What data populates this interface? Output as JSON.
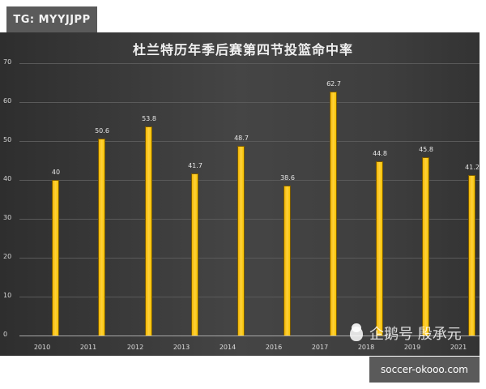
{
  "badges": {
    "tg": "TG: MYYJJPP",
    "site": "soccer-okooo.com"
  },
  "watermark": {
    "icon": "penguin-icon",
    "text": "企鹅号 殷承元"
  },
  "colors": {
    "bar": "#f5c000",
    "background": "#3c3c3c",
    "text": "#e6e6e6"
  },
  "chart_data": {
    "type": "bar",
    "title": "杜兰特历年季后赛第四节投篮命中率",
    "xlabel": "",
    "ylabel": "",
    "categories": [
      "2010",
      "2011",
      "2012",
      "2013",
      "2014",
      "2016",
      "2017",
      "2018",
      "2019",
      "2021"
    ],
    "values": [
      40,
      50.6,
      53.8,
      41.7,
      48.7,
      38.6,
      62.7,
      44.8,
      45.8,
      41.2
    ],
    "labels": [
      "40",
      "50.6",
      "53.8",
      "41.7",
      "48.7",
      "38.6",
      "62.7",
      "44.8",
      "45.8",
      "41.2"
    ],
    "ylim": [
      0,
      70
    ],
    "yticks": [
      "0",
      "10",
      "20",
      "30",
      "40",
      "50",
      "60",
      "70"
    ],
    "grid": true,
    "legend": null
  }
}
